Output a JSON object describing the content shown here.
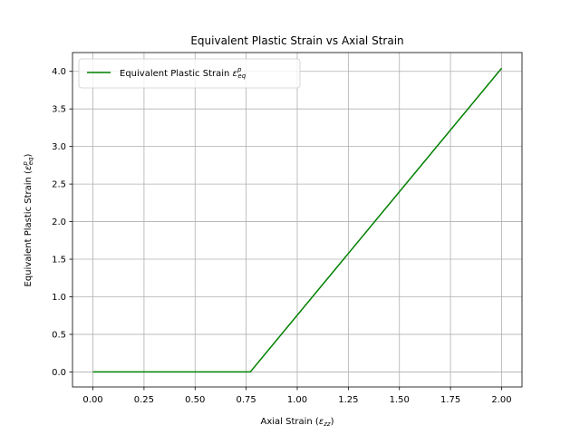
{
  "chart_data": {
    "type": "line",
    "title": "Equivalent Plastic Strain vs Axial Strain",
    "xlabel": {
      "prefix": "Axial Strain (",
      "symbol": "ε",
      "sub": "zz",
      "suffix": ")"
    },
    "ylabel": {
      "prefix": "Equivalent Plastic Strain (",
      "symbol": "ε",
      "sup": "p",
      "sub": "eq",
      "suffix": ")"
    },
    "xlim": [
      -0.1,
      2.1
    ],
    "ylim": [
      -0.2,
      4.25
    ],
    "grid": true,
    "legend_position": "top-left",
    "xticks": [
      0.0,
      0.25,
      0.5,
      0.75,
      1.0,
      1.25,
      1.5,
      1.75,
      2.0
    ],
    "xtick_labels": [
      "0.00",
      "0.25",
      "0.50",
      "0.75",
      "1.00",
      "1.25",
      "1.50",
      "1.75",
      "2.00"
    ],
    "yticks": [
      0.0,
      0.5,
      1.0,
      1.5,
      2.0,
      2.5,
      3.0,
      3.5,
      4.0
    ],
    "ytick_labels": [
      "0.0",
      "0.5",
      "1.0",
      "1.5",
      "2.0",
      "2.5",
      "3.0",
      "3.5",
      "4.0"
    ],
    "series": [
      {
        "name": {
          "prefix": "Equivalent Plastic Strain ",
          "symbol": "ε",
          "sup": "p",
          "sub": "eq"
        },
        "color": "#008000",
        "x": [
          0.0,
          0.77,
          2.0
        ],
        "y": [
          0.0,
          0.0,
          4.04
        ]
      }
    ]
  }
}
